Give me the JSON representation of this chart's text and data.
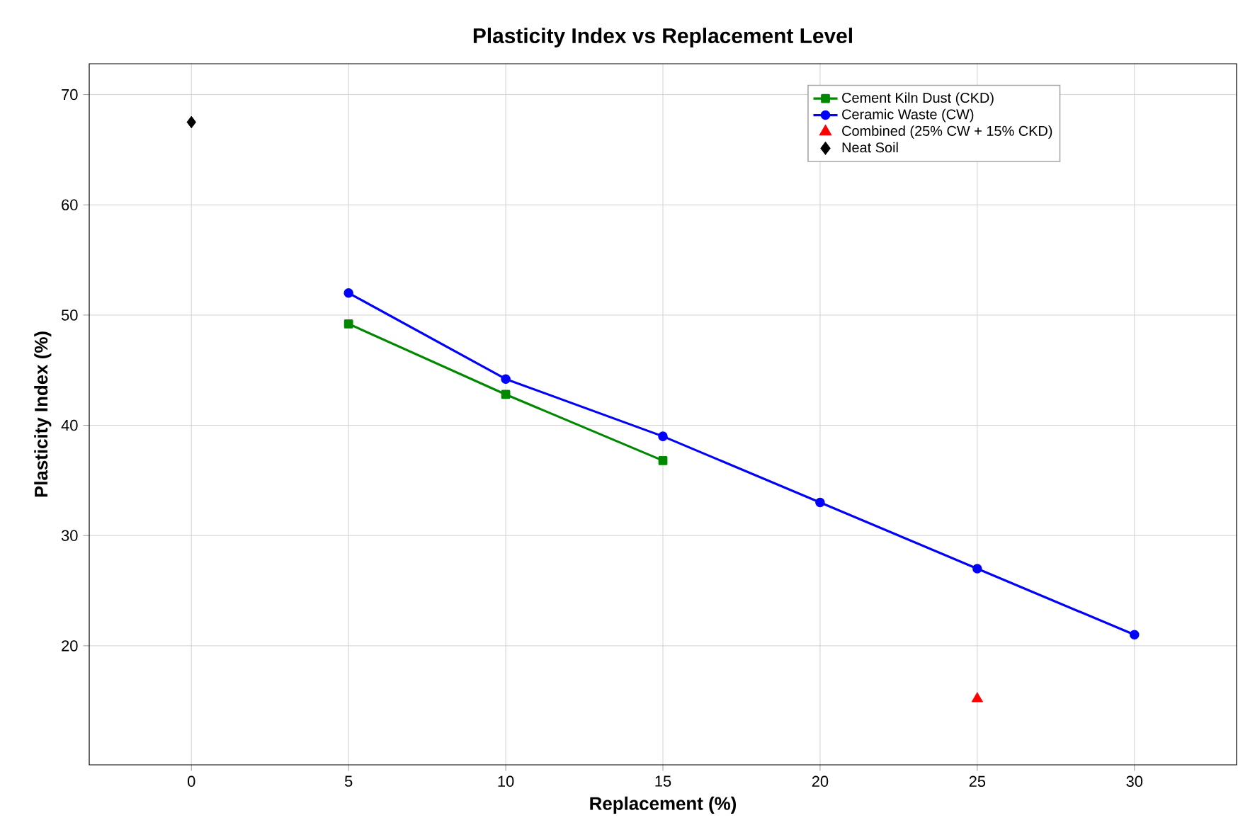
{
  "chart_data": {
    "type": "line",
    "title": "Plasticity Index vs Replacement Level",
    "xlabel": "Replacement (%)",
    "ylabel": "Plasticity Index (%)",
    "series": [
      {
        "name": "Cement Kiln Dust (CKD)",
        "color": "#008800",
        "marker": "square",
        "x": [
          5,
          10,
          15
        ],
        "values": [
          49.2,
          42.8,
          36.8
        ]
      },
      {
        "name": "Ceramic Waste (CW)",
        "color": "#0000ff",
        "marker": "circle",
        "x": [
          5,
          10,
          15,
          20,
          25,
          30
        ],
        "values": [
          52.0,
          44.2,
          39.0,
          33.0,
          27.0,
          21.0
        ]
      },
      {
        "name": "Combined (25% CW + 15% CKD)",
        "color": "#ff0000",
        "type": "scatter",
        "marker": "triangle",
        "x": [
          25
        ],
        "values": [
          15.2
        ]
      },
      {
        "name": "Neat Soil",
        "color": "#000000",
        "type": "scatter",
        "marker": "diamond",
        "x": [
          0
        ],
        "values": [
          67.5
        ]
      }
    ],
    "xlim": [
      -3.25,
      33.25
    ],
    "ylim": [
      9.2,
      72.8
    ],
    "xticks": [
      0,
      5,
      10,
      15,
      20,
      25,
      30
    ],
    "yticks": [
      20,
      30,
      40,
      50,
      60,
      70
    ],
    "grid": true,
    "legend": "top right"
  }
}
